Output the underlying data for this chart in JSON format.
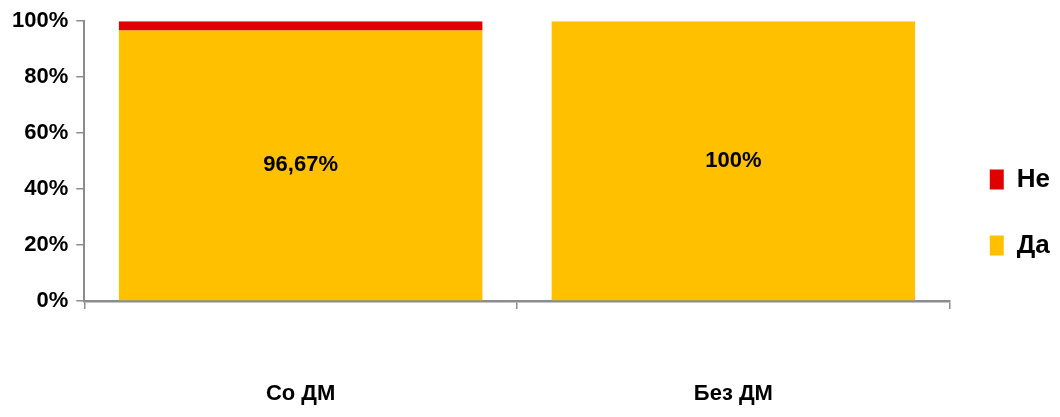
{
  "chart_data": {
    "type": "bar",
    "stacked": true,
    "categories": [
      "Со ДМ",
      "Без ДМ"
    ],
    "series": [
      {
        "name": "Да",
        "color": "#ffc000",
        "values": [
          96.67,
          100
        ],
        "value_labels": [
          "96,67%",
          "100%"
        ]
      },
      {
        "name": "Не",
        "color": "#e00000",
        "values": [
          3.3,
          0
        ]
      }
    ],
    "ylim": [
      0,
      100
    ],
    "yticks": [
      {
        "value": 0,
        "label": "0%"
      },
      {
        "value": 20,
        "label": "20%"
      },
      {
        "value": 40,
        "label": "40%"
      },
      {
        "value": 60,
        "label": "60%"
      },
      {
        "value": 80,
        "label": "80%"
      },
      {
        "value": 100,
        "label": "100%"
      }
    ],
    "grid": false,
    "legend": "right"
  }
}
